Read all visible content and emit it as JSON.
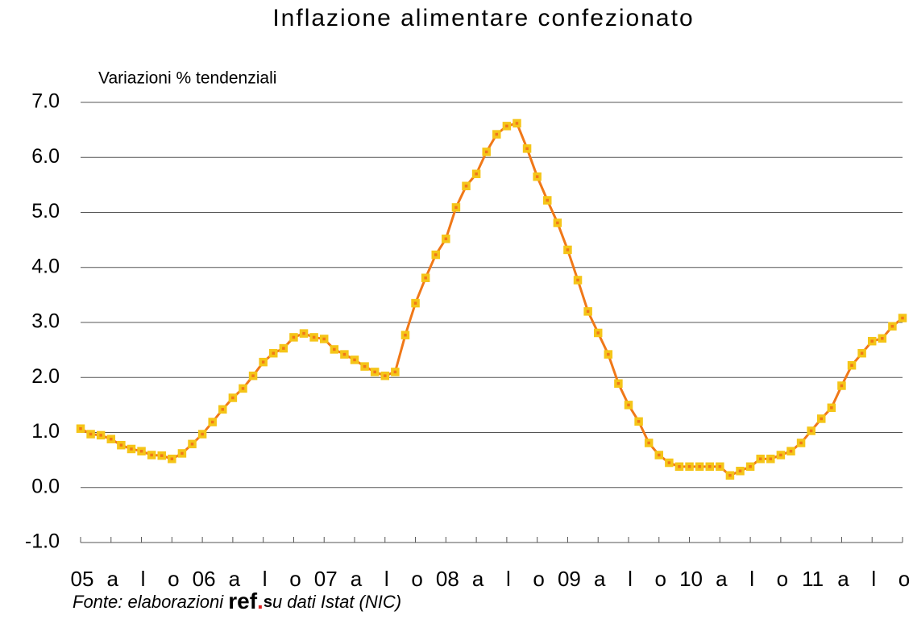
{
  "chart_data": {
    "type": "line",
    "title": "Inflazione alimentare confezionato",
    "y_label": "Variazioni % tendenziali",
    "categories": [
      "05",
      null,
      null,
      "a",
      null,
      null,
      "l",
      null,
      null,
      "o",
      null,
      null,
      "06",
      null,
      null,
      "a",
      null,
      null,
      "l",
      null,
      null,
      "o",
      null,
      null,
      "07",
      null,
      null,
      "a",
      null,
      null,
      "l",
      null,
      null,
      "o",
      null,
      null,
      "08",
      null,
      null,
      "a",
      null,
      null,
      "l",
      null,
      null,
      "o",
      null,
      null,
      "09",
      null,
      null,
      "a",
      null,
      null,
      "l",
      null,
      null,
      "o",
      null,
      null,
      "10",
      null,
      null,
      "a",
      null,
      null,
      "l",
      null,
      null,
      "o",
      null,
      null,
      "11",
      null,
      null,
      "a",
      null,
      null,
      "l",
      null,
      null,
      "o"
    ],
    "series": [
      {
        "name": "Inflazione alimentare confezionato",
        "color": "#f07818",
        "marker_color": "#f5c518",
        "values": [
          1.07,
          0.97,
          0.95,
          0.88,
          0.77,
          0.7,
          0.66,
          0.59,
          0.58,
          0.52,
          0.62,
          0.79,
          0.97,
          1.19,
          1.42,
          1.63,
          1.8,
          2.03,
          2.28,
          2.44,
          2.53,
          2.73,
          2.8,
          2.73,
          2.7,
          2.51,
          2.42,
          2.32,
          2.2,
          2.1,
          2.03,
          2.1,
          2.77,
          3.35,
          3.81,
          4.23,
          4.52,
          5.09,
          5.48,
          5.7,
          6.1,
          6.42,
          6.57,
          6.62,
          6.16,
          5.65,
          5.22,
          4.81,
          4.32,
          3.77,
          3.2,
          2.81,
          2.42,
          1.89,
          1.5,
          1.2,
          0.81,
          0.59,
          0.45,
          0.38,
          0.38,
          0.38,
          0.38,
          0.38,
          0.22,
          0.3,
          0.38,
          0.52,
          0.52,
          0.59,
          0.66,
          0.81,
          1.03,
          1.25,
          1.45,
          1.85,
          2.22,
          2.44,
          2.66,
          2.71,
          2.93,
          3.08
        ]
      }
    ],
    "ylim": [
      -1,
      7
    ],
    "yticks": [
      {
        "value": -1,
        "label": "-1.0"
      },
      {
        "value": 0,
        "label": "0.0"
      },
      {
        "value": 1,
        "label": "1.0"
      },
      {
        "value": 2,
        "label": "2.0"
      },
      {
        "value": 3,
        "label": "3.0"
      },
      {
        "value": 4,
        "label": "4.0"
      },
      {
        "value": 5,
        "label": "5.0"
      },
      {
        "value": 6,
        "label": "6.0"
      },
      {
        "value": 7,
        "label": "7.0"
      }
    ],
    "grid": true,
    "source": [
      "Fonte: elaborazioni ",
      "ref",
      ".",
      "s",
      "u dati Istat (NIC)"
    ]
  }
}
